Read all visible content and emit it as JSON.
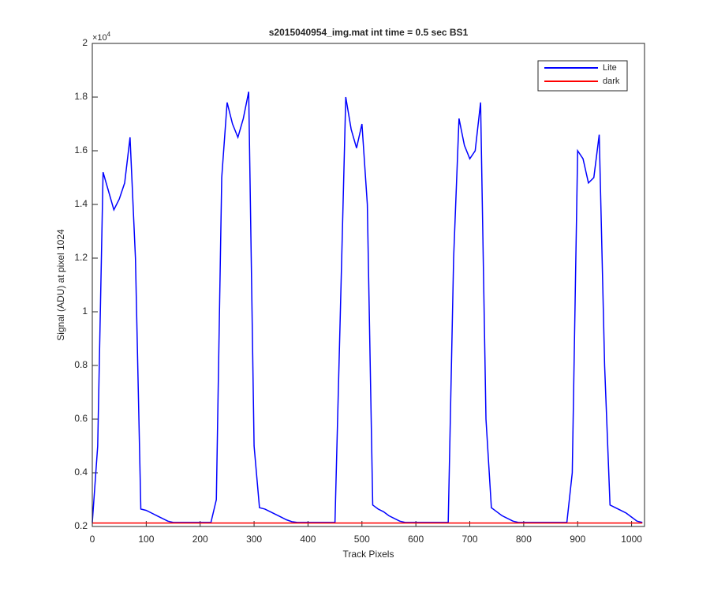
{
  "chart_data": {
    "type": "line",
    "title": "s2015040954_img.mat int time = 0.5 sec   BS1",
    "xlabel": "Track Pixels",
    "ylabel": "Signal (ADU) at pixel 1024",
    "y_exponent": {
      "base": "×10",
      "power": "4"
    },
    "x": [
      0,
      10,
      20,
      30,
      40,
      50,
      60,
      70,
      80,
      90,
      100,
      110,
      120,
      130,
      140,
      150,
      160,
      170,
      180,
      190,
      200,
      210,
      220,
      230,
      240,
      250,
      260,
      270,
      280,
      290,
      300,
      310,
      320,
      330,
      340,
      350,
      360,
      370,
      380,
      390,
      400,
      410,
      420,
      430,
      440,
      450,
      460,
      470,
      480,
      490,
      500,
      510,
      520,
      530,
      540,
      550,
      560,
      570,
      580,
      590,
      600,
      610,
      620,
      630,
      640,
      650,
      660,
      670,
      680,
      690,
      700,
      710,
      720,
      730,
      740,
      750,
      760,
      770,
      780,
      790,
      800,
      810,
      820,
      830,
      840,
      850,
      860,
      870,
      880,
      890,
      900,
      910,
      920,
      930,
      940,
      950,
      960,
      970,
      980,
      990,
      1000,
      1010,
      1020
    ],
    "series": [
      {
        "name": "Lite",
        "color": "#0000ff",
        "values": [
          0.215,
          0.5,
          1.52,
          1.45,
          1.38,
          1.42,
          1.48,
          1.65,
          1.2,
          0.265,
          0.26,
          0.25,
          0.24,
          0.23,
          0.22,
          0.215,
          0.215,
          0.215,
          0.215,
          0.215,
          0.215,
          0.215,
          0.215,
          0.3,
          1.5,
          1.78,
          1.7,
          1.65,
          1.72,
          1.82,
          0.5,
          0.27,
          0.265,
          0.255,
          0.245,
          0.235,
          0.225,
          0.218,
          0.215,
          0.215,
          0.215,
          0.215,
          0.215,
          0.215,
          0.215,
          0.215,
          1.0,
          1.8,
          1.68,
          1.61,
          1.7,
          1.4,
          0.28,
          0.265,
          0.255,
          0.24,
          0.23,
          0.22,
          0.215,
          0.215,
          0.215,
          0.215,
          0.215,
          0.215,
          0.215,
          0.215,
          0.215,
          1.2,
          1.72,
          1.62,
          1.57,
          1.6,
          1.78,
          0.6,
          0.27,
          0.255,
          0.24,
          0.23,
          0.22,
          0.215,
          0.215,
          0.215,
          0.215,
          0.215,
          0.215,
          0.215,
          0.215,
          0.215,
          0.215,
          0.4,
          1.6,
          1.57,
          1.48,
          1.5,
          1.66,
          0.8,
          0.28,
          0.27,
          0.26,
          0.25,
          0.235,
          0.22,
          0.215
        ]
      },
      {
        "name": "dark",
        "color": "#ff0000",
        "values": [
          0.213,
          0.213,
          0.213,
          0.213,
          0.213,
          0.213,
          0.213,
          0.213,
          0.213,
          0.213,
          0.213,
          0.213,
          0.213,
          0.213,
          0.213,
          0.213,
          0.213,
          0.213,
          0.213,
          0.213,
          0.213,
          0.213,
          0.213,
          0.213,
          0.213,
          0.213,
          0.213,
          0.213,
          0.213,
          0.213,
          0.213,
          0.213,
          0.213,
          0.213,
          0.213,
          0.213,
          0.213,
          0.213,
          0.213,
          0.213,
          0.213,
          0.213,
          0.213,
          0.213,
          0.213,
          0.213,
          0.213,
          0.213,
          0.213,
          0.213,
          0.213,
          0.213,
          0.213,
          0.213,
          0.213,
          0.213,
          0.213,
          0.213,
          0.213,
          0.213,
          0.213,
          0.213,
          0.213,
          0.213,
          0.213,
          0.213,
          0.213,
          0.213,
          0.213,
          0.213,
          0.213,
          0.213,
          0.213,
          0.213,
          0.213,
          0.213,
          0.213,
          0.213,
          0.213,
          0.213,
          0.213,
          0.213,
          0.213,
          0.213,
          0.213,
          0.213,
          0.213,
          0.213,
          0.213,
          0.213,
          0.213,
          0.213,
          0.213,
          0.213,
          0.213,
          0.213,
          0.213,
          0.213,
          0.213,
          0.213,
          0.213,
          0.213,
          0.213
        ]
      }
    ],
    "xlim": [
      0,
      1024
    ],
    "xticks": [
      0,
      100,
      200,
      300,
      400,
      500,
      600,
      700,
      800,
      900,
      1000
    ],
    "ylim": [
      0.2,
      2
    ],
    "yticks": [
      0.2,
      0.4,
      0.6,
      0.8,
      1,
      1.2,
      1.4,
      1.6,
      1.8,
      2
    ],
    "legend": "northeast",
    "grid": false
  }
}
